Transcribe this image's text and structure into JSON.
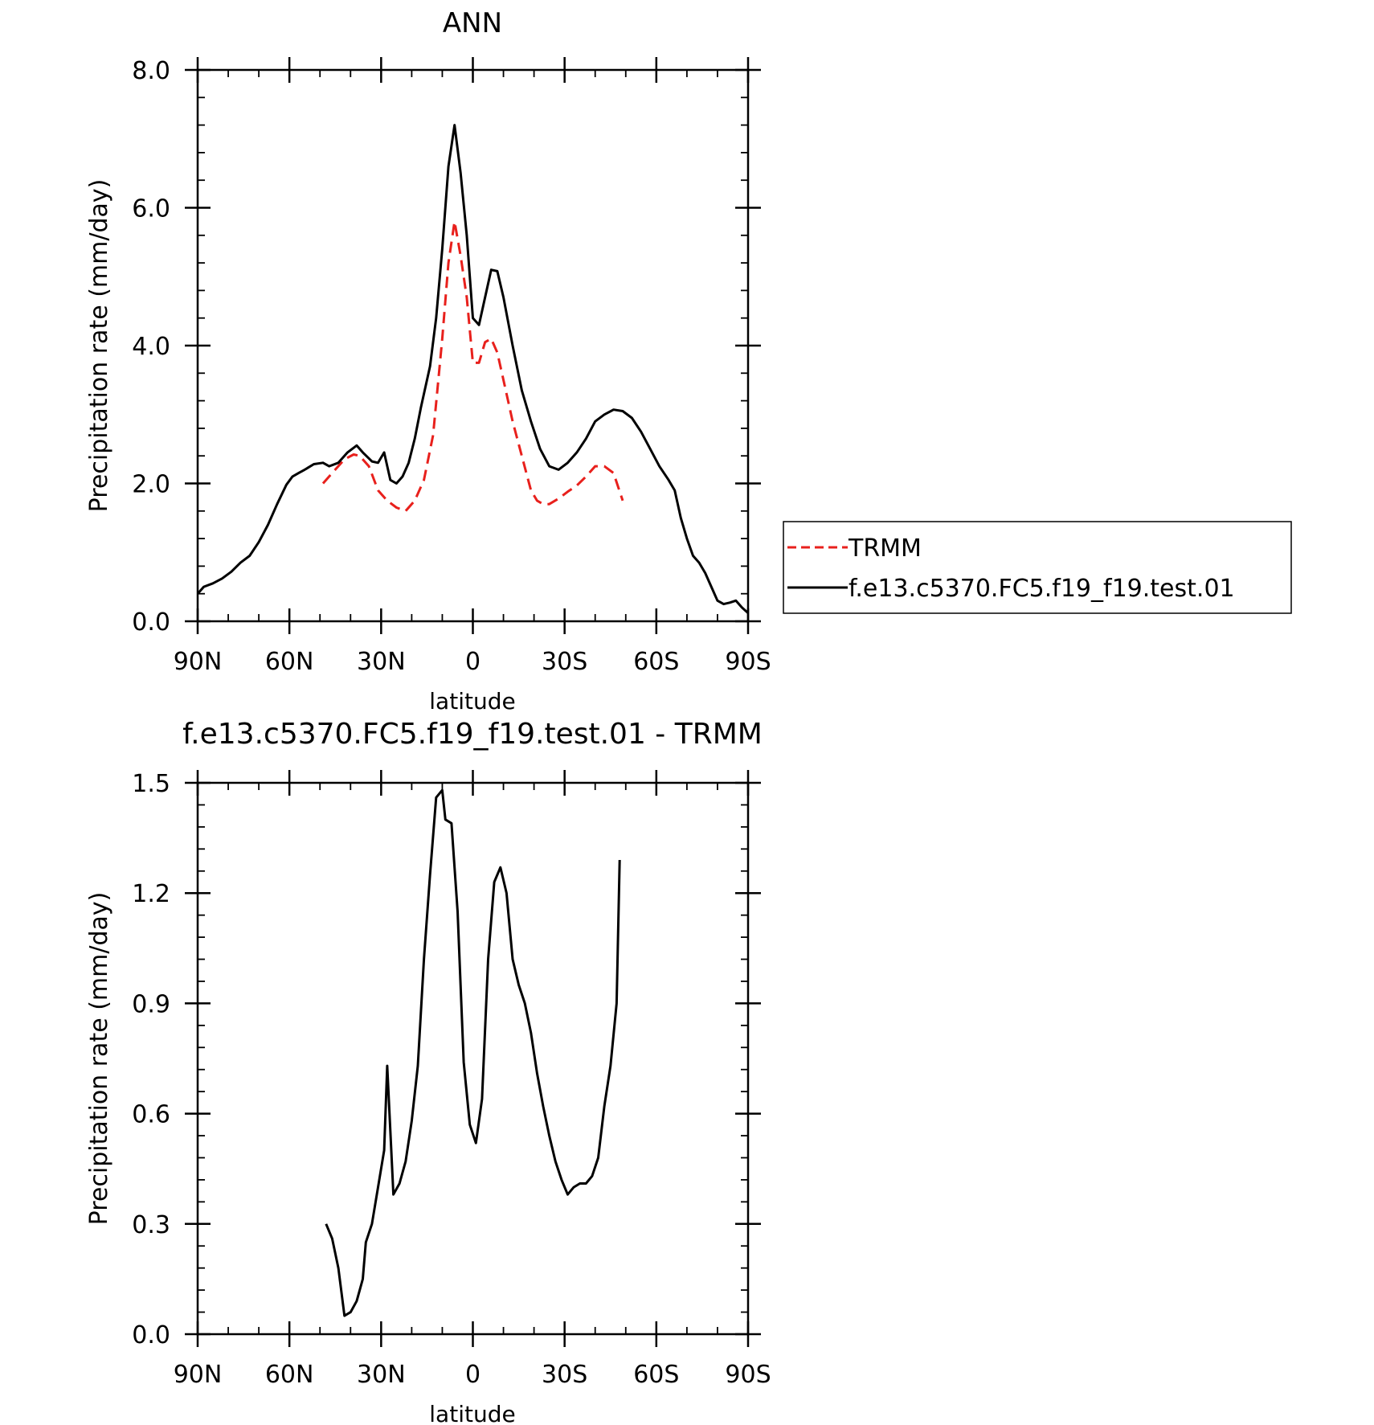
{
  "chart_data": [
    {
      "type": "line",
      "title": "ANN",
      "xlabel": "latitude",
      "ylabel": "Precipitation rate (mm/day)",
      "xlim": [
        90,
        -90
      ],
      "ylim": [
        0,
        8
      ],
      "x_ticks": [
        90,
        60,
        30,
        0,
        -30,
        -60,
        -90
      ],
      "x_tick_labels": [
        "90N",
        "60N",
        "30N",
        "0",
        "30S",
        "60S",
        "90S"
      ],
      "y_ticks": [
        0,
        2,
        4,
        6,
        8
      ],
      "y_tick_labels": [
        "0.0",
        "2.0",
        "4.0",
        "6.0",
        "8.0"
      ],
      "legend": {
        "position": "right"
      },
      "series": [
        {
          "name": "TRMM",
          "color": "#e8201c",
          "style": "dashed",
          "x": [
            49,
            46,
            42,
            39,
            37,
            34,
            31,
            28,
            25,
            22,
            19,
            16,
            13,
            10,
            8,
            6,
            4,
            2,
            0,
            -2,
            -4,
            -6,
            -8,
            -10,
            -13,
            -16,
            -19,
            -21,
            -23,
            -25,
            -28,
            -31,
            -34,
            -37,
            -40,
            -43,
            -46,
            -49
          ],
          "values": [
            2.0,
            2.15,
            2.35,
            2.42,
            2.4,
            2.25,
            1.9,
            1.75,
            1.65,
            1.6,
            1.75,
            2.05,
            2.7,
            4.1,
            5.2,
            5.8,
            5.3,
            4.7,
            3.75,
            3.75,
            4.05,
            4.1,
            3.9,
            3.5,
            2.9,
            2.4,
            1.9,
            1.75,
            1.7,
            1.7,
            1.78,
            1.88,
            1.97,
            2.1,
            2.25,
            2.25,
            2.15,
            1.75
          ]
        },
        {
          "name": "f.e13.c5370.FC5.f19_f19.test.01",
          "color": "#000000",
          "style": "solid",
          "x": [
            90,
            88,
            85,
            82,
            79,
            76,
            73,
            70,
            67,
            64,
            61,
            59,
            57,
            55,
            52,
            49,
            47,
            44,
            41,
            38,
            36,
            33,
            31,
            29,
            27,
            25,
            23,
            21,
            19,
            17,
            14,
            12,
            10,
            8,
            6,
            4,
            2,
            0,
            -2,
            -4,
            -6,
            -8,
            -10,
            -13,
            -16,
            -19,
            -22,
            -25,
            -28,
            -31,
            -34,
            -37,
            -40,
            -43,
            -46,
            -49,
            -52,
            -55,
            -58,
            -61,
            -64,
            -66,
            -68,
            -70,
            -72,
            -74,
            -76,
            -78,
            -80,
            -82,
            -84,
            -86,
            -88,
            -90
          ],
          "values": [
            0.4,
            0.5,
            0.55,
            0.62,
            0.72,
            0.85,
            0.95,
            1.15,
            1.4,
            1.7,
            1.98,
            2.1,
            2.15,
            2.2,
            2.28,
            2.3,
            2.25,
            2.3,
            2.45,
            2.55,
            2.45,
            2.32,
            2.3,
            2.45,
            2.05,
            2.0,
            2.1,
            2.3,
            2.65,
            3.1,
            3.7,
            4.4,
            5.4,
            6.6,
            7.2,
            6.5,
            5.6,
            4.4,
            4.3,
            4.7,
            5.1,
            5.08,
            4.7,
            4.0,
            3.35,
            2.9,
            2.5,
            2.25,
            2.2,
            2.3,
            2.45,
            2.65,
            2.9,
            3.0,
            3.07,
            3.05,
            2.95,
            2.75,
            2.5,
            2.25,
            2.05,
            1.9,
            1.5,
            1.2,
            0.95,
            0.85,
            0.7,
            0.5,
            0.3,
            0.25,
            0.27,
            0.3,
            0.2,
            0.12
          ]
        }
      ]
    },
    {
      "type": "line",
      "title": "f.e13.c5370.FC5.f19_f19.test.01 - TRMM",
      "xlabel": "latitude",
      "ylabel": "Precipitation rate (mm/day)",
      "xlim": [
        90,
        -90
      ],
      "ylim": [
        0,
        1.5
      ],
      "x_ticks": [
        90,
        60,
        30,
        0,
        -30,
        -60,
        -90
      ],
      "x_tick_labels": [
        "90N",
        "60N",
        "30N",
        "0",
        "30S",
        "60S",
        "90S"
      ],
      "y_ticks": [
        0,
        0.3,
        0.6,
        0.9,
        1.2,
        1.5
      ],
      "y_tick_labels": [
        "0.0",
        "0.3",
        "0.6",
        "0.9",
        "1.2",
        "1.5"
      ],
      "series": [
        {
          "color": "#000000",
          "style": "solid",
          "x": [
            48,
            46,
            44,
            42,
            40,
            38,
            36,
            35,
            33,
            31,
            29,
            28,
            26,
            24,
            22,
            20,
            18,
            16,
            14,
            12,
            10,
            9,
            7,
            5,
            3,
            1,
            -1,
            -3,
            -5,
            -7,
            -9,
            -11,
            -13,
            -15,
            -17,
            -19,
            -21,
            -23,
            -25,
            -27,
            -29,
            -31,
            -33,
            -35,
            -37,
            -39,
            -41,
            -43,
            -45,
            -47,
            -48
          ],
          "values": [
            0.3,
            0.26,
            0.18,
            0.05,
            0.06,
            0.09,
            0.15,
            0.25,
            0.3,
            0.4,
            0.5,
            0.73,
            0.38,
            0.41,
            0.47,
            0.58,
            0.73,
            1.02,
            1.25,
            1.46,
            1.48,
            1.4,
            1.39,
            1.15,
            0.74,
            0.57,
            0.52,
            0.64,
            1.02,
            1.23,
            1.27,
            1.2,
            1.02,
            0.95,
            0.9,
            0.82,
            0.71,
            0.62,
            0.54,
            0.47,
            0.42,
            0.38,
            0.4,
            0.41,
            0.41,
            0.43,
            0.48,
            0.62,
            0.73,
            0.9,
            1.29
          ]
        }
      ]
    }
  ]
}
